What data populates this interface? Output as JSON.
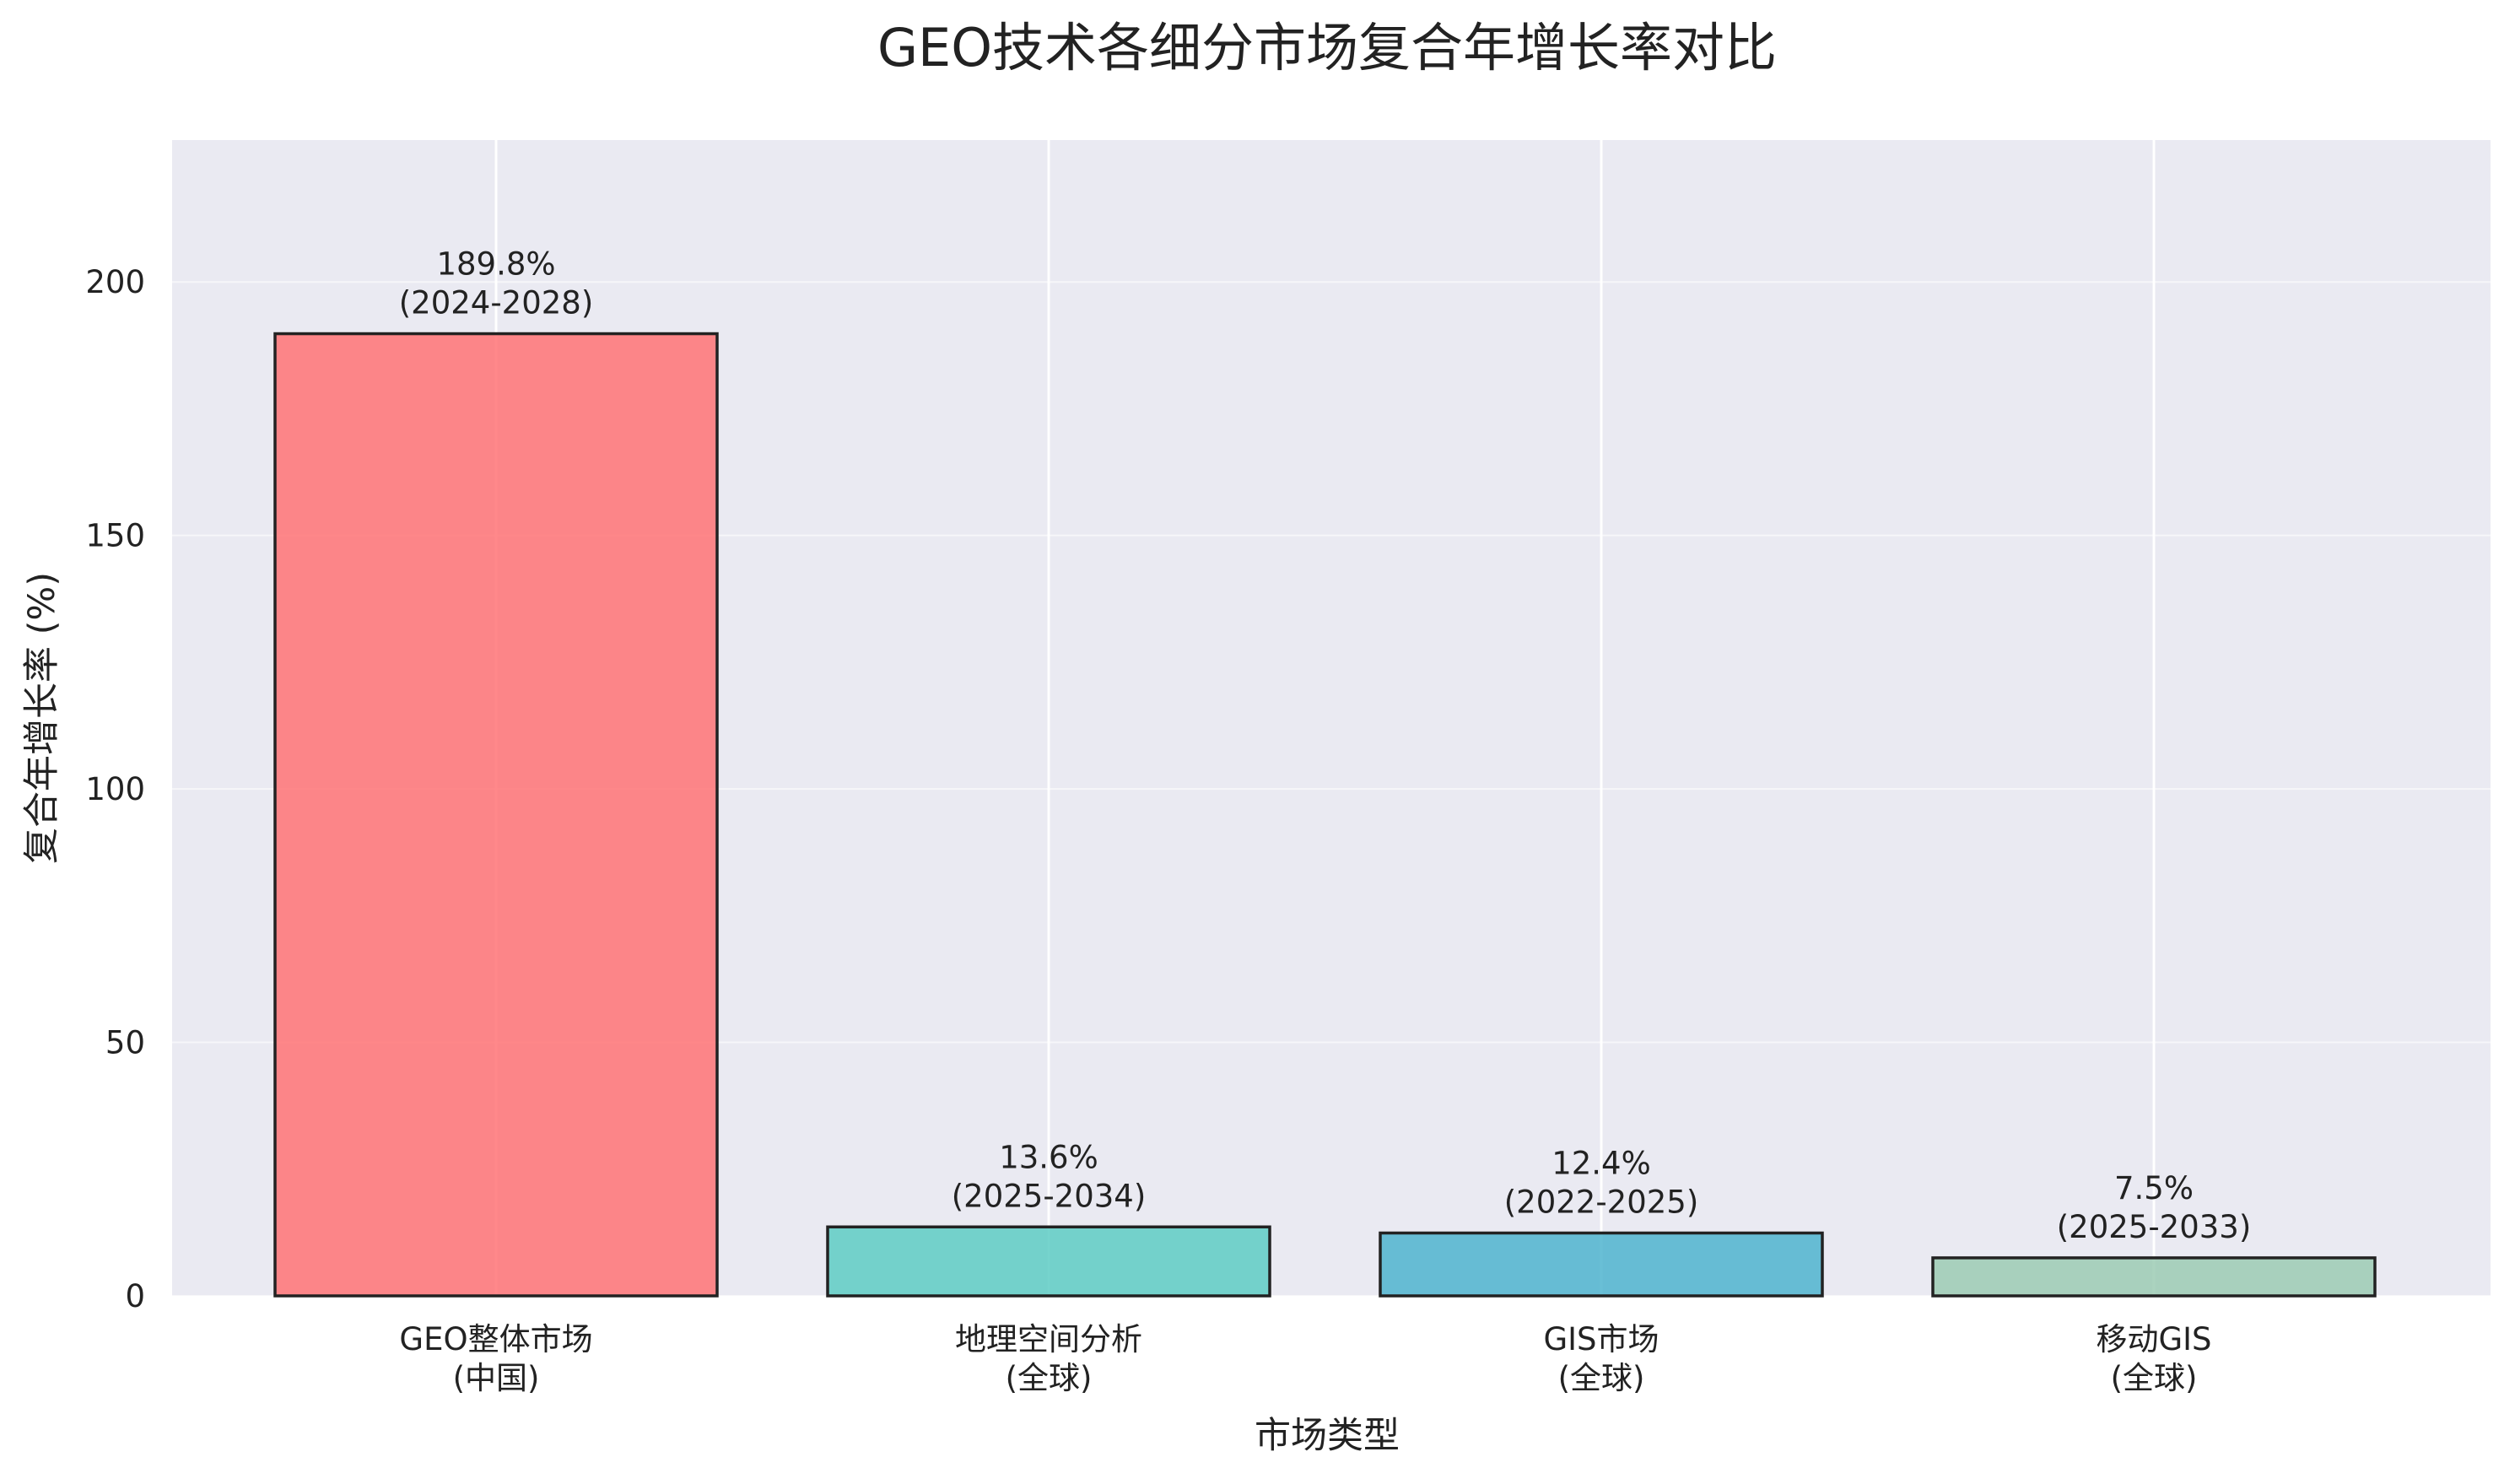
{
  "chart_data": {
    "type": "bar",
    "title": "GEO技术各细分市场复合年增长率对比",
    "xlabel": "市场类型",
    "ylabel": "复合年增长率 (%)",
    "ylim": [
      0,
      228
    ],
    "yticks": [
      0,
      50,
      100,
      150,
      200
    ],
    "grid": true,
    "categories": [
      {
        "line1": "GEO整体市场",
        "line2": "(中国)"
      },
      {
        "line1": "地理空间分析",
        "line2": "(全球)"
      },
      {
        "line1": "GIS市场",
        "line2": "(全球)"
      },
      {
        "line1": "移动GIS",
        "line2": "(全球)"
      }
    ],
    "values": [
      189.8,
      13.6,
      12.4,
      7.5
    ],
    "value_labels": [
      "189.8%",
      "13.6%",
      "12.4%",
      "7.5%"
    ],
    "period_labels": [
      "(2024-2028)",
      "(2025-2034)",
      "(2022-2025)",
      "(2025-2033)"
    ],
    "colors": [
      "#FF7376",
      "#5ECCC4",
      "#4FB4CF",
      "#9CCBB4"
    ],
    "background_color": "#EAEAF2"
  }
}
